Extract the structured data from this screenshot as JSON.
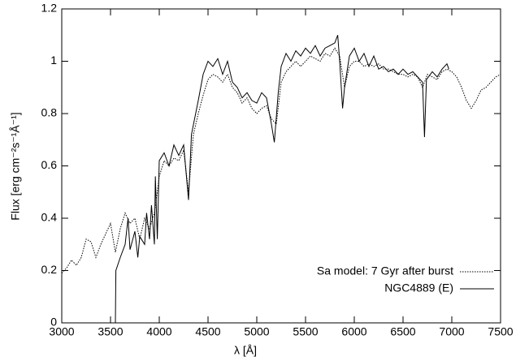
{
  "chart_data": {
    "type": "line",
    "xlabel": "λ [Å]",
    "ylabel": "Flux [erg cm⁻²s⁻¹Å⁻¹]",
    "xlim": [
      3000,
      7500
    ],
    "xticks": [
      3000,
      3500,
      4000,
      4500,
      5000,
      5500,
      6000,
      6500,
      7000,
      7500
    ],
    "ylim": [
      0,
      1.2
    ],
    "yticks": [
      0,
      0.2,
      0.4,
      0.6,
      0.8,
      1,
      1.2
    ],
    "grid": false,
    "legend": "bottom right",
    "series": [
      {
        "name": "Sa model: 7 Gyr after burst",
        "color": "#000000",
        "dash": "dotted",
        "x": [
          3000,
          3050,
          3100,
          3150,
          3200,
          3250,
          3300,
          3350,
          3400,
          3450,
          3500,
          3550,
          3600,
          3650,
          3700,
          3750,
          3800,
          3850,
          3900,
          3950,
          3980,
          4000,
          4050,
          4100,
          4150,
          4200,
          4250,
          4300,
          4350,
          4400,
          4450,
          4500,
          4550,
          4600,
          4650,
          4700,
          4750,
          4800,
          4850,
          4900,
          4950,
          5000,
          5050,
          5100,
          5150,
          5200,
          5250,
          5300,
          5350,
          5400,
          5450,
          5500,
          5550,
          5600,
          5650,
          5700,
          5750,
          5800,
          5850,
          5900,
          5950,
          6000,
          6050,
          6100,
          6150,
          6200,
          6250,
          6300,
          6350,
          6400,
          6450,
          6500,
          6550,
          6600,
          6650,
          6700,
          6750,
          6800,
          6850,
          6900,
          6950,
          7000,
          7050,
          7100,
          7150,
          7200,
          7250,
          7300,
          7350,
          7400,
          7450,
          7500
        ],
        "values": [
          0.19,
          0.21,
          0.24,
          0.22,
          0.25,
          0.32,
          0.31,
          0.25,
          0.3,
          0.34,
          0.38,
          0.27,
          0.36,
          0.42,
          0.38,
          0.4,
          0.32,
          0.4,
          0.36,
          0.42,
          0.5,
          0.56,
          0.62,
          0.6,
          0.63,
          0.62,
          0.66,
          0.5,
          0.72,
          0.8,
          0.87,
          0.93,
          0.95,
          0.94,
          0.92,
          0.95,
          0.9,
          0.88,
          0.84,
          0.86,
          0.82,
          0.8,
          0.82,
          0.83,
          0.78,
          0.76,
          0.92,
          0.96,
          0.98,
          1.0,
          0.98,
          1.0,
          1.02,
          1.01,
          1.0,
          1.03,
          1.02,
          1.05,
          1.02,
          0.9,
          0.98,
          1.0,
          1.0,
          0.98,
          0.99,
          0.98,
          0.99,
          0.97,
          0.97,
          0.96,
          0.95,
          0.95,
          0.94,
          0.95,
          0.94,
          0.9,
          0.95,
          0.94,
          0.93,
          0.96,
          0.97,
          0.96,
          0.94,
          0.9,
          0.85,
          0.82,
          0.85,
          0.89,
          0.9,
          0.92,
          0.94,
          0.95
        ]
      },
      {
        "name": "NGC4889 (E)",
        "color": "#000000",
        "dash": "solid",
        "x": [
          3550,
          3555,
          3600,
          3650,
          3680,
          3700,
          3750,
          3780,
          3800,
          3850,
          3870,
          3900,
          3920,
          3950,
          3960,
          3980,
          4000,
          4050,
          4100,
          4150,
          4200,
          4250,
          4300,
          4330,
          4400,
          4450,
          4500,
          4550,
          4600,
          4650,
          4700,
          4750,
          4800,
          4850,
          4900,
          4950,
          5000,
          5050,
          5100,
          5150,
          5180,
          5220,
          5250,
          5300,
          5350,
          5400,
          5450,
          5500,
          5550,
          5600,
          5650,
          5700,
          5750,
          5800,
          5830,
          5850,
          5880,
          5900,
          5950,
          6000,
          6050,
          6100,
          6150,
          6200,
          6250,
          6300,
          6350,
          6400,
          6450,
          6500,
          6550,
          6600,
          6650,
          6700,
          6720,
          6740,
          6800,
          6850,
          6900,
          6950,
          6970
        ],
        "values": [
          0.0,
          0.2,
          0.25,
          0.3,
          0.4,
          0.28,
          0.35,
          0.25,
          0.33,
          0.3,
          0.42,
          0.32,
          0.45,
          0.3,
          0.56,
          0.32,
          0.62,
          0.65,
          0.6,
          0.68,
          0.64,
          0.68,
          0.47,
          0.72,
          0.85,
          0.95,
          1.0,
          0.98,
          1.01,
          0.95,
          1.0,
          0.92,
          0.9,
          0.86,
          0.88,
          0.85,
          0.84,
          0.88,
          0.86,
          0.76,
          0.69,
          0.88,
          0.98,
          1.03,
          1.0,
          1.04,
          1.02,
          1.05,
          1.03,
          1.06,
          1.02,
          1.05,
          1.06,
          1.07,
          1.1,
          1.0,
          0.82,
          0.9,
          1.02,
          1.05,
          1.0,
          1.03,
          0.98,
          1.02,
          0.97,
          0.98,
          0.96,
          0.97,
          0.95,
          0.97,
          0.95,
          0.96,
          0.94,
          0.92,
          0.71,
          0.93,
          0.96,
          0.94,
          0.97,
          0.99,
          0.97
        ]
      }
    ]
  }
}
